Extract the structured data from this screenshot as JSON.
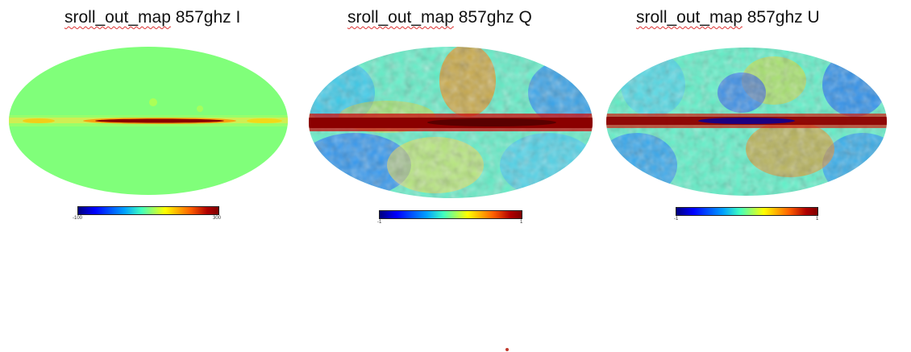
{
  "panels": [
    {
      "name_part": "sroll_out_map",
      "rest_part": " 857ghz I",
      "cbar_min": "-100",
      "cbar_max": "300"
    },
    {
      "name_part": "sroll_out_map",
      "rest_part": " 857ghz Q",
      "cbar_min": "-1",
      "cbar_max": "1"
    },
    {
      "name_part": "sroll_out_map",
      "rest_part": " 857ghz U",
      "cbar_min": "-1",
      "cbar_max": "1"
    }
  ],
  "colormap": [
    "#00007f",
    "#0000ff",
    "#00a0ff",
    "#40ffc0",
    "#ffff00",
    "#ff6000",
    "#b00000",
    "#7f0000"
  ]
}
